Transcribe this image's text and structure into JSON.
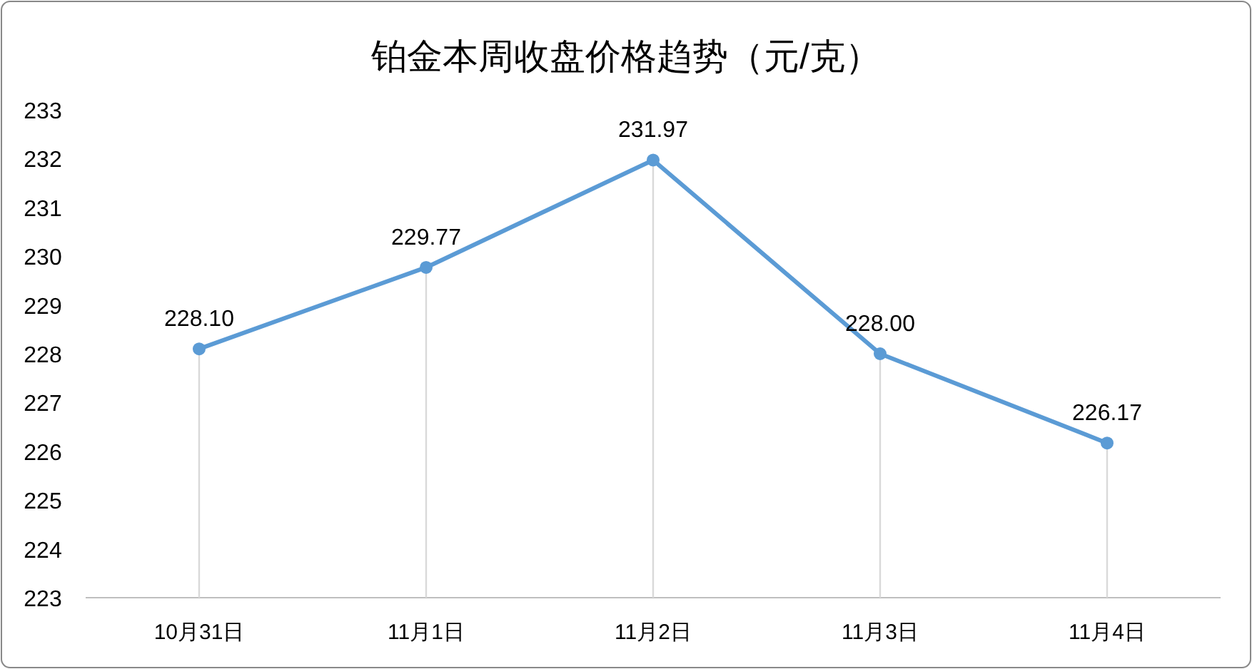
{
  "chart_data": {
    "type": "line",
    "title": "铂金本周收盘价格趋势（元/克）",
    "categories": [
      "10月31日",
      "11月1日",
      "11月2日",
      "11月3日",
      "11月4日"
    ],
    "series": [
      {
        "color": "#5b9bd5",
        "values": [
          228.1,
          229.77,
          231.97,
          228.0,
          226.17
        ],
        "value_labels": [
          "228.10",
          "229.77",
          "231.97",
          "228.00",
          "226.17"
        ]
      }
    ],
    "ylim": [
      223,
      233
    ],
    "yticks": [
      223,
      224,
      225,
      226,
      227,
      228,
      229,
      230,
      231,
      232,
      233
    ],
    "marker": "circle"
  }
}
